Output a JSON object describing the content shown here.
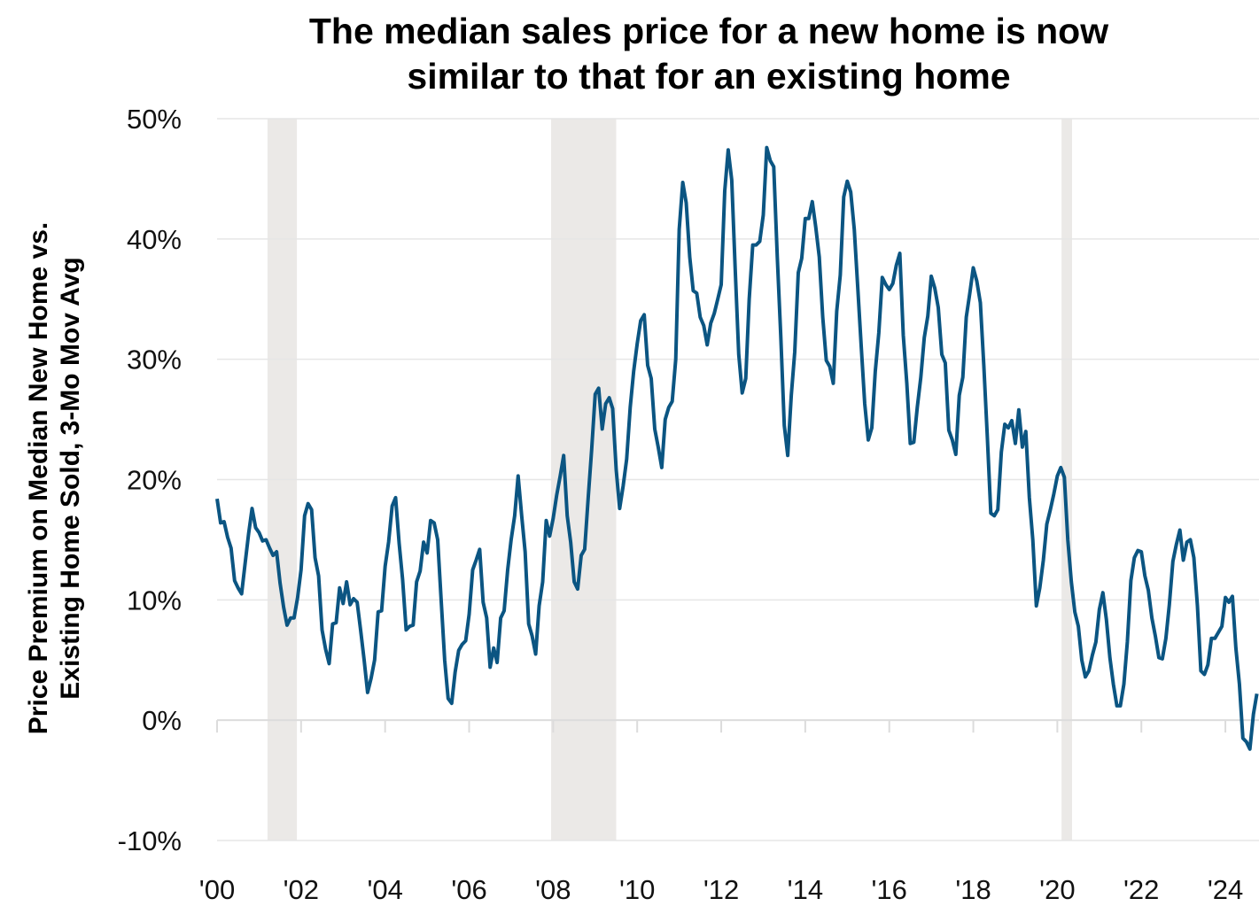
{
  "chart_data": {
    "type": "line",
    "title": "The median sales price for a new home is now similar to that for an existing home",
    "title_lines": [
      "The median sales price for a new home is now",
      "similar to that for an existing home"
    ],
    "ylabel": "Price Premium on Median New Home vs. Existing Home Sold, 3-Mo Mov Avg",
    "ylabel_lines": [
      "Price Premium on Median New Home vs.",
      "Existing Home Sold, 3-Mo Mov Avg"
    ],
    "xlabel": "",
    "ylim": [
      -10,
      50
    ],
    "xlim": [
      2000,
      2024.8
    ],
    "yticks": [
      50,
      40,
      30,
      20,
      10,
      0,
      -10
    ],
    "ytick_labels": [
      "50%",
      "40%",
      "30%",
      "20%",
      "10%",
      "0%",
      "-10%"
    ],
    "xticks": [
      2000,
      2002,
      2004,
      2006,
      2008,
      2010,
      2012,
      2014,
      2016,
      2018,
      2020,
      2022,
      2024
    ],
    "xtick_labels": [
      "'00",
      "'02",
      "'04",
      "'06",
      "'08",
      "'10",
      "'12",
      "'14",
      "'16",
      "'18",
      "'20",
      "'22",
      "'24"
    ],
    "grid": "horizontal",
    "recessions": [
      [
        2001.2,
        2001.9
      ],
      [
        2007.95,
        2009.5
      ],
      [
        2020.1,
        2020.35
      ]
    ],
    "colors": {
      "line": "#0b5582",
      "recession": "#ebe9e7",
      "grid": "#e6e6e6"
    },
    "series": [
      {
        "name": "Price premium (%)",
        "start": 2000.0,
        "frequency": "monthly",
        "values": [
          18.4,
          16.4,
          16.5,
          15.2,
          14.3,
          11.6,
          11,
          10.5,
          13,
          15.5,
          17.6,
          16,
          15.6,
          14.9,
          15,
          14.3,
          13.7,
          14,
          11.4,
          9.4,
          7.9,
          8.5,
          8.5,
          10.2,
          12.5,
          17,
          18,
          17.5,
          13.5,
          12,
          7.5,
          5.9,
          4.7,
          8,
          8.1,
          11,
          9.7,
          11.5,
          9.6,
          10.1,
          9.8,
          7.5,
          5,
          2.3,
          3.5,
          5,
          9,
          9.1,
          12.8,
          14.8,
          17.8,
          18.5,
          14.7,
          11.7,
          7.5,
          7.8,
          7.9,
          11.5,
          12.4,
          14.8,
          13.9,
          16.6,
          16.4,
          15,
          10,
          5,
          1.8,
          1.4,
          4,
          5.8,
          6.3,
          6.6,
          8.8,
          12.5,
          13.3,
          14.2,
          9.8,
          8.5,
          4.4,
          6,
          4.8,
          8.5,
          9.1,
          12.5,
          15,
          17,
          20.3,
          17,
          14,
          8,
          7,
          5.5,
          9.5,
          11.5,
          16.6,
          15.3,
          16.8,
          18.7,
          20.3,
          22,
          17,
          14.8,
          11.5,
          10.9,
          13.7,
          14.2,
          18.5,
          22.5,
          27.1,
          27.6,
          24.2,
          26.3,
          26.8,
          25.9,
          20.8,
          17.6,
          19.5,
          21.7,
          26,
          29,
          31.3,
          33.2,
          33.7,
          29.5,
          28.4,
          24.2,
          22.7,
          21,
          25,
          26,
          26.5,
          30,
          40.8,
          44.7,
          43,
          38.5,
          35.7,
          35.5,
          33.5,
          32.8,
          31.2,
          33,
          33.8,
          35,
          36.2,
          44,
          47.4,
          44.9,
          37.5,
          30.4,
          27.2,
          28.4,
          35,
          39.5,
          39.5,
          39.8,
          42,
          47.6,
          46.5,
          46,
          38.5,
          32,
          24.5,
          22,
          27,
          30.6,
          37.2,
          38.4,
          41.7,
          41.7,
          43.1,
          41,
          38.5,
          33.5,
          29.9,
          29.4,
          28,
          34,
          37,
          43.5,
          44.8,
          43.9,
          40.8,
          36,
          31,
          26.3,
          23.3,
          24.3,
          29,
          32.2,
          36.8,
          36.2,
          35.8,
          36.3,
          37.8,
          38.8,
          32,
          28,
          23,
          23.1,
          26,
          28.5,
          31.8,
          33.6,
          36.9,
          35.9,
          34.3,
          30.4,
          29.7,
          24.1,
          23.3,
          22.1,
          27,
          28.5,
          33.5,
          35.5,
          37.6,
          36.5,
          34.7,
          29.5,
          23.5,
          17.2,
          17,
          17.5,
          22.3,
          24.6,
          24.3,
          24.9,
          23,
          25.8,
          22.7,
          24,
          18.5,
          15,
          9.5,
          11,
          13.3,
          16.3,
          17.5,
          18.8,
          20.3,
          21,
          20.2,
          15,
          11.5,
          9,
          7.8,
          5,
          3.6,
          4.1,
          5.4,
          6.5,
          9.2,
          10.6,
          8.4,
          5.2,
          3,
          1.2,
          1.2,
          3,
          6.5,
          11.6,
          13.5,
          14.1,
          14,
          12,
          10.8,
          8.5,
          7,
          5.2,
          5.1,
          6.8,
          9.6,
          13.2,
          14.6,
          15.8,
          13.3,
          14.8,
          15,
          13.5,
          9.5,
          4.1,
          3.8,
          4.6,
          6.8,
          6.8,
          7.3,
          7.8,
          10.2,
          9.8,
          10.3,
          6,
          3,
          -1.5,
          -1.8,
          -2.4,
          0.5,
          2.2
        ]
      }
    ]
  }
}
